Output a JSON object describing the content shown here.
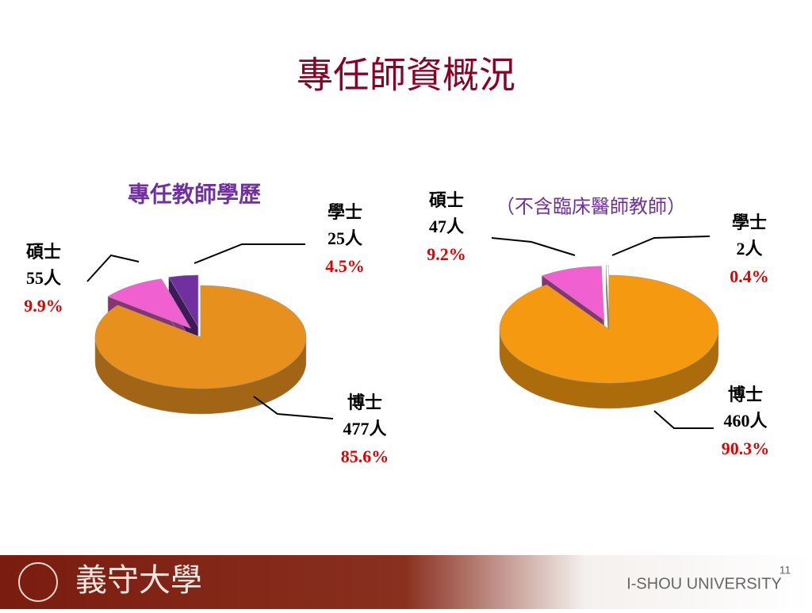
{
  "title": "專任師資概況",
  "chart_data": [
    {
      "type": "pie",
      "title": "專任教師學歷",
      "categories": [
        "博士",
        "碩士",
        "學士"
      ],
      "values": [
        85.6,
        9.9,
        4.5
      ],
      "value_labels": [
        "85.6%",
        "9.9%",
        "4.5%"
      ],
      "count_labels": [
        "477人",
        "55人",
        "25人"
      ],
      "colors": [
        "#e8901e",
        "#f060d0",
        "#7030a0"
      ]
    },
    {
      "type": "pie",
      "subtitle": "（不含臨床醫師教師）",
      "categories": [
        "博士",
        "碩士",
        "學士"
      ],
      "values": [
        90.3,
        9.2,
        0.4
      ],
      "value_labels": [
        "90.3%",
        "9.2%",
        "0.4%"
      ],
      "count_labels": [
        "460人",
        "47人",
        "2人"
      ],
      "colors": [
        "#f59a10",
        "#f060d0",
        "#ffffff"
      ]
    }
  ],
  "footer": {
    "page_number": "11",
    "logo_text": "義守大學",
    "university": "I-SHOU UNIVERSITY"
  }
}
